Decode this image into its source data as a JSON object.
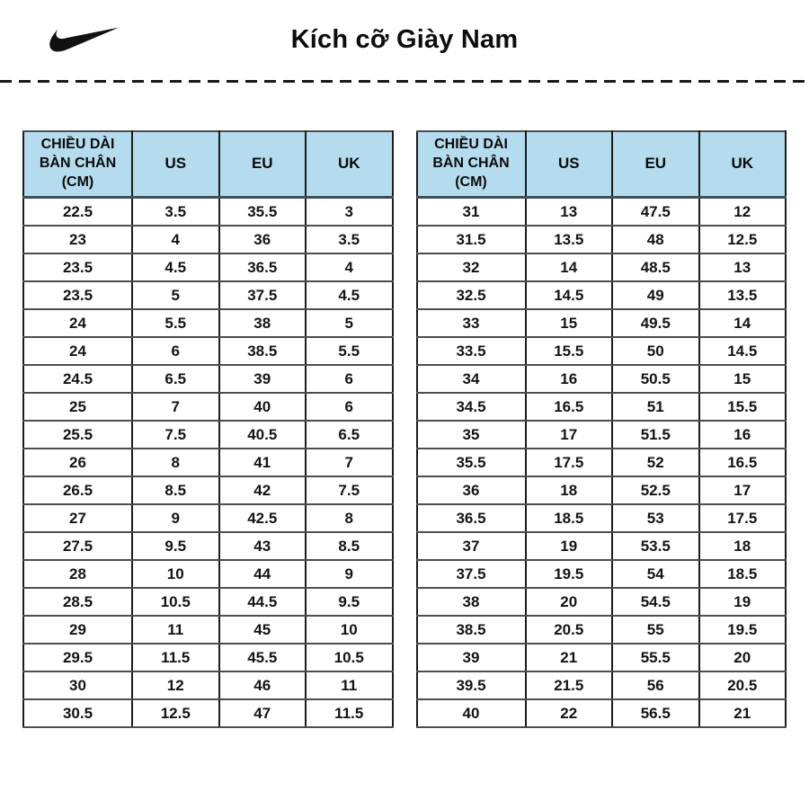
{
  "header": {
    "title": "Kích cỡ Giày Nam",
    "logo": "nike-swoosh-icon"
  },
  "colors": {
    "header_bg": "#b5dcee",
    "divider": "#191919",
    "text": "#111111"
  },
  "columns": [
    "CHIỀU DÀI BÀN CHÂN (CM)",
    "US",
    "EU",
    "UK"
  ],
  "tables": [
    {
      "name": "men-sizes-left",
      "rows": [
        [
          "22.5",
          "3.5",
          "35.5",
          "3"
        ],
        [
          "23",
          "4",
          "36",
          "3.5"
        ],
        [
          "23.5",
          "4.5",
          "36.5",
          "4"
        ],
        [
          "23.5",
          "5",
          "37.5",
          "4.5"
        ],
        [
          "24",
          "5.5",
          "38",
          "5"
        ],
        [
          "24",
          "6",
          "38.5",
          "5.5"
        ],
        [
          "24.5",
          "6.5",
          "39",
          "6"
        ],
        [
          "25",
          "7",
          "40",
          "6"
        ],
        [
          "25.5",
          "7.5",
          "40.5",
          "6.5"
        ],
        [
          "26",
          "8",
          "41",
          "7"
        ],
        [
          "26.5",
          "8.5",
          "42",
          "7.5"
        ],
        [
          "27",
          "9",
          "42.5",
          "8"
        ],
        [
          "27.5",
          "9.5",
          "43",
          "8.5"
        ],
        [
          "28",
          "10",
          "44",
          "9"
        ],
        [
          "28.5",
          "10.5",
          "44.5",
          "9.5"
        ],
        [
          "29",
          "11",
          "45",
          "10"
        ],
        [
          "29.5",
          "11.5",
          "45.5",
          "10.5"
        ],
        [
          "30",
          "12",
          "46",
          "11"
        ],
        [
          "30.5",
          "12.5",
          "47",
          "11.5"
        ]
      ]
    },
    {
      "name": "men-sizes-right",
      "rows": [
        [
          "31",
          "13",
          "47.5",
          "12"
        ],
        [
          "31.5",
          "13.5",
          "48",
          "12.5"
        ],
        [
          "32",
          "14",
          "48.5",
          "13"
        ],
        [
          "32.5",
          "14.5",
          "49",
          "13.5"
        ],
        [
          "33",
          "15",
          "49.5",
          "14"
        ],
        [
          "33.5",
          "15.5",
          "50",
          "14.5"
        ],
        [
          "34",
          "16",
          "50.5",
          "15"
        ],
        [
          "34.5",
          "16.5",
          "51",
          "15.5"
        ],
        [
          "35",
          "17",
          "51.5",
          "16"
        ],
        [
          "35.5",
          "17.5",
          "52",
          "16.5"
        ],
        [
          "36",
          "18",
          "52.5",
          "17"
        ],
        [
          "36.5",
          "18.5",
          "53",
          "17.5"
        ],
        [
          "37",
          "19",
          "53.5",
          "18"
        ],
        [
          "37.5",
          "19.5",
          "54",
          "18.5"
        ],
        [
          "38",
          "20",
          "54.5",
          "19"
        ],
        [
          "38.5",
          "20.5",
          "55",
          "19.5"
        ],
        [
          "39",
          "21",
          "55.5",
          "20"
        ],
        [
          "39.5",
          "21.5",
          "56",
          "20.5"
        ],
        [
          "40",
          "22",
          "56.5",
          "21"
        ]
      ]
    }
  ]
}
